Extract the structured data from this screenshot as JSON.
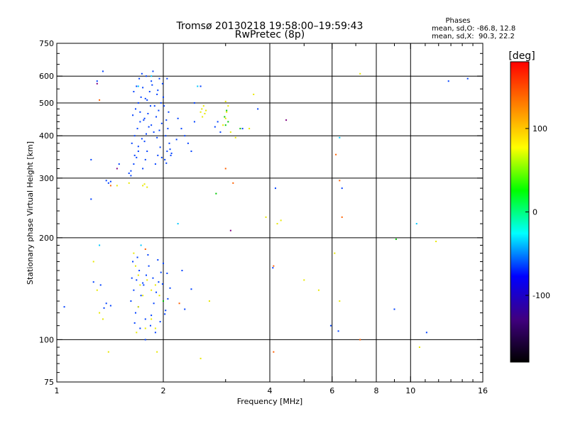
{
  "chart_data": {
    "type": "scatter",
    "title": "Tromsø 20130218 19:58:00–19:59:43",
    "subtitle": "RwPretec (8p)",
    "xlabel": "Frequency [MHz]",
    "ylabel": "Stationary phase Virtual Height [km]",
    "x_scale": "log",
    "y_scale": "log",
    "xlim": [
      1,
      16
    ],
    "ylim": [
      75,
      750
    ],
    "x_ticks": [
      1,
      2,
      4,
      6,
      8,
      10,
      16
    ],
    "x_tick_labels": [
      "1",
      "2",
      "4",
      "6",
      "8",
      "10",
      "16"
    ],
    "y_ticks": [
      75,
      100,
      200,
      300,
      400,
      500,
      600,
      750
    ],
    "y_tick_labels": [
      "75",
      "100",
      "200",
      "300",
      "400",
      "500",
      "600",
      "750"
    ],
    "grid_x": [
      2,
      4,
      6,
      8,
      10
    ],
    "grid_y": [
      100,
      200,
      300,
      400,
      500,
      600
    ],
    "stats": {
      "heading": "Phases",
      "line_o": "mean, sd,O: -86.8, 12.8",
      "line_x": "mean, sd,X:  90.3, 22.2"
    },
    "colorbar": {
      "label": "[deg]",
      "range": [
        -180,
        180
      ],
      "ticks": [
        100,
        0,
        -100
      ],
      "tick_labels": [
        "100",
        "0",
        "-100"
      ],
      "colors": [
        "#ff0000",
        "#ff8000",
        "#ffff00",
        "#00ff00",
        "#00ffff",
        "#0000ff",
        "#400080",
        "#000000"
      ]
    },
    "series": [
      {
        "color": "#0040ff",
        "points": [
          [
            1.62,
            315
          ],
          [
            1.65,
            330
          ],
          [
            1.68,
            345
          ],
          [
            1.7,
            360
          ],
          [
            1.63,
            380
          ],
          [
            1.66,
            400
          ],
          [
            1.69,
            420
          ],
          [
            1.72,
            440
          ],
          [
            1.64,
            460
          ],
          [
            1.67,
            480
          ],
          [
            1.7,
            500
          ],
          [
            1.73,
            520
          ],
          [
            1.65,
            540
          ],
          [
            1.68,
            560
          ],
          [
            1.71,
            590
          ],
          [
            1.74,
            610
          ],
          [
            1.75,
            320
          ],
          [
            1.78,
            340
          ],
          [
            1.8,
            360
          ],
          [
            1.77,
            385
          ],
          [
            1.79,
            405
          ],
          [
            1.82,
            425
          ],
          [
            1.76,
            445
          ],
          [
            1.81,
            465
          ],
          [
            1.84,
            490
          ],
          [
            1.78,
            515
          ],
          [
            1.83,
            540
          ],
          [
            1.86,
            565
          ],
          [
            1.79,
            600
          ],
          [
            1.87,
            620
          ],
          [
            1.9,
            330
          ],
          [
            1.93,
            350
          ],
          [
            1.96,
            370
          ],
          [
            1.92,
            395
          ],
          [
            1.95,
            415
          ],
          [
            1.98,
            435
          ],
          [
            1.91,
            455
          ],
          [
            1.94,
            475
          ],
          [
            1.97,
            500
          ],
          [
            2.0,
            520
          ],
          [
            1.93,
            545
          ],
          [
            1.99,
            570
          ],
          [
            1.95,
            590
          ],
          [
            2.02,
            340
          ],
          [
            2.05,
            360
          ],
          [
            2.08,
            380
          ],
          [
            2.03,
            400
          ],
          [
            2.06,
            420
          ],
          [
            2.04,
            445
          ],
          [
            2.07,
            470
          ],
          [
            2.01,
            490
          ],
          [
            2.09,
            365
          ],
          [
            2.1,
            350
          ],
          [
            1.66,
            350
          ],
          [
            1.7,
            372
          ],
          [
            1.74,
            392
          ],
          [
            1.88,
            410
          ],
          [
            1.85,
            430
          ],
          [
            1.77,
            450
          ],
          [
            1.72,
            470
          ],
          [
            1.89,
            490
          ],
          [
            1.8,
            510
          ],
          [
            1.92,
            530
          ],
          [
            1.75,
            555
          ],
          [
            1.85,
            580
          ],
          [
            1.6,
            310
          ],
          [
            1.62,
            305
          ],
          [
            1.98,
            345
          ],
          [
            2.04,
            332
          ],
          [
            2.11,
            355
          ],
          [
            2.2,
            450
          ],
          [
            2.25,
            420
          ],
          [
            2.3,
            400
          ],
          [
            2.18,
            390
          ],
          [
            2.35,
            380
          ],
          [
            2.4,
            360
          ],
          [
            2.45,
            440
          ],
          [
            1.38,
            295
          ],
          [
            1.42,
            293
          ],
          [
            1.4,
            290
          ],
          [
            1.25,
            340
          ],
          [
            1.5,
            330
          ],
          [
            1.25,
            260
          ],
          [
            2.85,
            440
          ],
          [
            2.8,
            425
          ],
          [
            2.9,
            410
          ],
          [
            1.3,
            580
          ],
          [
            1.35,
            620
          ],
          [
            2.05,
            590
          ],
          [
            2.45,
            500
          ],
          [
            2.55,
            560
          ],
          [
            3.7,
            480
          ],
          [
            3.35,
            420
          ],
          [
            4.15,
            280
          ],
          [
            6.4,
            280
          ],
          [
            12.8,
            580
          ],
          [
            14.5,
            590
          ],
          [
            1.62,
            130
          ],
          [
            1.65,
            140
          ],
          [
            1.68,
            150
          ],
          [
            1.71,
            160
          ],
          [
            1.64,
            170
          ],
          [
            1.67,
            120
          ],
          [
            1.7,
            125
          ],
          [
            1.73,
            135
          ],
          [
            1.76,
            145
          ],
          [
            1.79,
            155
          ],
          [
            1.82,
            165
          ],
          [
            1.85,
            118
          ],
          [
            1.88,
            128
          ],
          [
            1.91,
            138
          ],
          [
            1.94,
            148
          ],
          [
            1.97,
            158
          ],
          [
            2.0,
            168
          ],
          [
            2.03,
            122
          ],
          [
            2.06,
            132
          ],
          [
            2.09,
            142
          ],
          [
            1.66,
            112
          ],
          [
            1.72,
            108
          ],
          [
            1.78,
            115
          ],
          [
            1.84,
            110
          ],
          [
            1.9,
            105
          ],
          [
            1.96,
            113
          ],
          [
            2.02,
            119
          ],
          [
            1.69,
            175
          ],
          [
            1.81,
            178
          ],
          [
            1.93,
            172
          ],
          [
            1.63,
            152
          ],
          [
            1.75,
            147
          ],
          [
            1.87,
            152
          ],
          [
            1.99,
            146
          ],
          [
            2.05,
            157
          ],
          [
            1.38,
            128
          ],
          [
            1.42,
            126
          ],
          [
            1.36,
            124
          ],
          [
            1.27,
            148
          ],
          [
            1.33,
            145
          ],
          [
            2.4,
            141
          ],
          [
            2.3,
            123
          ],
          [
            2.26,
            160
          ],
          [
            4.08,
            163
          ],
          [
            5.95,
            110
          ],
          [
            6.25,
            106
          ],
          [
            9.0,
            123
          ],
          [
            11.1,
            105
          ],
          [
            1.05,
            125
          ],
          [
            1.78,
            100
          ]
        ]
      },
      {
        "color": "#e8e800",
        "points": [
          [
            2.55,
            470
          ],
          [
            2.57,
            480
          ],
          [
            2.6,
            490
          ],
          [
            2.62,
            465
          ],
          [
            2.58,
            455
          ],
          [
            2.64,
            475
          ],
          [
            2.95,
            430
          ],
          [
            3.0,
            450
          ],
          [
            3.02,
            470
          ],
          [
            3.05,
            490
          ],
          [
            3.1,
            410
          ],
          [
            3.0,
            505
          ],
          [
            3.2,
            395
          ],
          [
            3.5,
            420
          ],
          [
            3.6,
            530
          ],
          [
            1.6,
            290
          ],
          [
            1.75,
            285
          ],
          [
            1.77,
            288
          ],
          [
            1.8,
            282
          ],
          [
            1.48,
            285
          ],
          [
            1.65,
            180
          ],
          [
            1.67,
            165
          ],
          [
            1.7,
            155
          ],
          [
            1.72,
            145
          ],
          [
            1.75,
            135
          ],
          [
            1.8,
            150
          ],
          [
            1.85,
            140
          ],
          [
            1.9,
            145
          ],
          [
            1.95,
            135
          ],
          [
            1.7,
            125
          ],
          [
            1.85,
            115
          ],
          [
            1.78,
            108
          ],
          [
            1.68,
            105
          ],
          [
            1.9,
            108
          ],
          [
            1.27,
            170
          ],
          [
            1.3,
            140
          ],
          [
            1.32,
            120
          ],
          [
            1.35,
            115
          ],
          [
            3.9,
            230
          ],
          [
            4.2,
            220
          ],
          [
            4.3,
            225
          ],
          [
            5.0,
            150
          ],
          [
            5.5,
            140
          ],
          [
            6.1,
            180
          ],
          [
            6.3,
            130
          ],
          [
            7.2,
            610
          ],
          [
            2.55,
            88
          ],
          [
            1.92,
            92
          ],
          [
            1.4,
            92
          ],
          [
            2.7,
            130
          ],
          [
            11.8,
            195
          ],
          [
            10.6,
            95
          ]
        ]
      },
      {
        "color": "#00c800",
        "points": [
          [
            2.98,
            455
          ],
          [
            3.02,
            475
          ],
          [
            3.05,
            440
          ],
          [
            3.0,
            430
          ],
          [
            3.3,
            420
          ],
          [
            2.82,
            270
          ],
          [
            9.1,
            198
          ],
          [
            2.0,
            130
          ]
        ]
      },
      {
        "color": "#ff6000",
        "points": [
          [
            1.32,
            510
          ],
          [
            3.0,
            320
          ],
          [
            3.15,
            290
          ],
          [
            1.78,
            185
          ],
          [
            1.42,
            285
          ],
          [
            6.3,
            295
          ],
          [
            6.4,
            230
          ],
          [
            6.15,
            352
          ],
          [
            4.1,
            165
          ],
          [
            4.1,
            92
          ],
          [
            2.22,
            128
          ],
          [
            7.2,
            100
          ]
        ]
      },
      {
        "color": "#00c8ff",
        "points": [
          [
            2.5,
            560
          ],
          [
            1.32,
            190
          ],
          [
            1.73,
            190
          ],
          [
            10.4,
            220
          ],
          [
            2.2,
            220
          ],
          [
            6.3,
            395
          ],
          [
            1.7,
            560
          ],
          [
            1.85,
            600
          ]
        ]
      },
      {
        "color": "#800080",
        "points": [
          [
            4.45,
            445
          ],
          [
            1.48,
            320
          ],
          [
            3.1,
            210
          ],
          [
            1.3,
            570
          ]
        ]
      }
    ]
  }
}
